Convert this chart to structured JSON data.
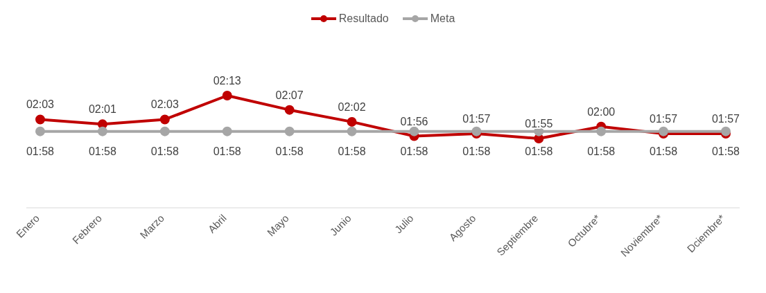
{
  "chart_data": {
    "type": "line",
    "categories": [
      "Enero",
      "Febrero",
      "Marzo",
      "Abril",
      "Mayo",
      "Junio",
      "Julio",
      "Agosto",
      "Septiembre",
      "Octubre*",
      "Noviembre*",
      "Dciembre*"
    ],
    "series": [
      {
        "name": "Resultado",
        "color": "#c00000",
        "values": [
          123,
          121,
          123,
          133,
          127,
          122,
          116,
          117,
          115,
          120,
          117,
          117
        ],
        "value_labels": [
          "02:03",
          "02:01",
          "02:03",
          "02:13",
          "02:07",
          "02:02",
          "01:56",
          "01:57",
          "01:55",
          "02:00",
          "01:57",
          "01:57"
        ]
      },
      {
        "name": "Meta",
        "color": "#a6a6a6",
        "values": [
          118,
          118,
          118,
          118,
          118,
          118,
          118,
          118,
          118,
          118,
          118,
          118
        ],
        "value_labels": [
          "01:58",
          "01:58",
          "01:58",
          "01:58",
          "01:58",
          "01:58",
          "01:58",
          "01:58",
          "01:58",
          "01:58",
          "01:58",
          "01:58"
        ]
      }
    ],
    "legend": "top",
    "marker": "circle",
    "line_style": "solid",
    "grid": false,
    "tick_labels": "x"
  }
}
